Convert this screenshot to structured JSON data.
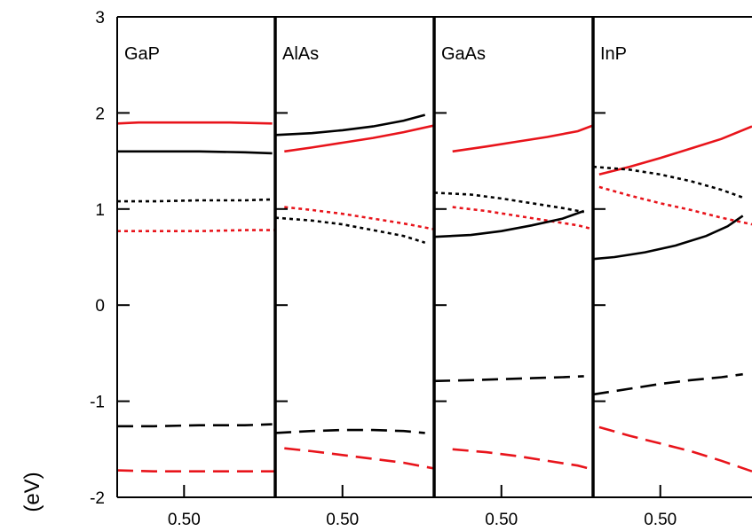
{
  "chart_data": {
    "type": "line",
    "ylabel": "(eV)",
    "ylim": [
      -2,
      3
    ],
    "yticks": [
      3,
      2,
      1,
      0,
      -1,
      -2
    ],
    "xtick_label": "0.50",
    "colors": {
      "black": "#000000",
      "red": "#e8141b"
    },
    "panels": [
      {
        "label": "GaP",
        "xlim": [
          0.28,
          0.8
        ],
        "series": [
          {
            "color": "red",
            "style": "solid",
            "x": [
              0.28,
              0.35,
              0.45,
              0.55,
              0.65,
              0.79
            ],
            "y": [
              1.89,
              1.9,
              1.9,
              1.9,
              1.9,
              1.89
            ]
          },
          {
            "color": "black",
            "style": "solid",
            "x": [
              0.28,
              0.4,
              0.55,
              0.7,
              0.79
            ],
            "y": [
              1.6,
              1.6,
              1.6,
              1.59,
              1.58
            ]
          },
          {
            "color": "black",
            "style": "dotted",
            "x": [
              0.28,
              0.4,
              0.55,
              0.7,
              0.79
            ],
            "y": [
              1.08,
              1.08,
              1.09,
              1.09,
              1.1
            ]
          },
          {
            "color": "red",
            "style": "dotted",
            "x": [
              0.28,
              0.4,
              0.55,
              0.7,
              0.8
            ],
            "y": [
              0.77,
              0.77,
              0.77,
              0.78,
              0.78
            ]
          },
          {
            "color": "black",
            "style": "dashed",
            "x": [
              0.28,
              0.4,
              0.55,
              0.7,
              0.79
            ],
            "y": [
              -1.26,
              -1.26,
              -1.25,
              -1.25,
              -1.24
            ]
          },
          {
            "color": "red",
            "style": "dashed",
            "x": [
              0.28,
              0.4,
              0.55,
              0.7,
              0.8
            ],
            "y": [
              -1.72,
              -1.73,
              -1.73,
              -1.73,
              -1.73
            ]
          }
        ]
      },
      {
        "label": "AlAs",
        "xlim": [
          0.28,
          0.8
        ],
        "series": [
          {
            "color": "black",
            "style": "solid",
            "x": [
              0.28,
              0.4,
              0.5,
              0.6,
              0.7,
              0.77
            ],
            "y": [
              1.77,
              1.79,
              1.82,
              1.86,
              1.92,
              1.98
            ]
          },
          {
            "color": "red",
            "style": "solid",
            "x": [
              0.31,
              0.4,
              0.5,
              0.6,
              0.7,
              0.8
            ],
            "y": [
              1.6,
              1.64,
              1.69,
              1.74,
              1.8,
              1.87
            ]
          },
          {
            "color": "red",
            "style": "dotted",
            "x": [
              0.31,
              0.4,
              0.5,
              0.6,
              0.7,
              0.8
            ],
            "y": [
              1.02,
              0.99,
              0.95,
              0.9,
              0.85,
              0.79
            ]
          },
          {
            "color": "black",
            "style": "dotted",
            "x": [
              0.28,
              0.4,
              0.5,
              0.6,
              0.7,
              0.77
            ],
            "y": [
              0.91,
              0.88,
              0.84,
              0.78,
              0.72,
              0.65
            ]
          },
          {
            "color": "black",
            "style": "dashed",
            "x": [
              0.28,
              0.4,
              0.5,
              0.6,
              0.7,
              0.77
            ],
            "y": [
              -1.33,
              -1.31,
              -1.3,
              -1.3,
              -1.31,
              -1.33
            ]
          },
          {
            "color": "red",
            "style": "dashed",
            "x": [
              0.31,
              0.4,
              0.5,
              0.6,
              0.7,
              0.8
            ],
            "y": [
              -1.49,
              -1.52,
              -1.56,
              -1.6,
              -1.64,
              -1.7
            ]
          }
        ]
      },
      {
        "label": "GaAs",
        "xlim": [
          0.28,
          0.8
        ],
        "series": [
          {
            "color": "red",
            "style": "solid",
            "x": [
              0.34,
              0.45,
              0.55,
              0.65,
              0.75,
              0.8
            ],
            "y": [
              1.6,
              1.65,
              1.7,
              1.75,
              1.81,
              1.87
            ]
          },
          {
            "color": "black",
            "style": "dotted",
            "x": [
              0.28,
              0.4,
              0.5,
              0.6,
              0.7,
              0.77
            ],
            "y": [
              1.17,
              1.15,
              1.11,
              1.06,
              1.01,
              0.97
            ]
          },
          {
            "color": "red",
            "style": "dotted",
            "x": [
              0.34,
              0.45,
              0.55,
              0.65,
              0.75,
              0.8
            ],
            "y": [
              1.02,
              0.98,
              0.93,
              0.88,
              0.83,
              0.79
            ]
          },
          {
            "color": "black",
            "style": "solid",
            "x": [
              0.28,
              0.4,
              0.5,
              0.6,
              0.7,
              0.77
            ],
            "y": [
              0.71,
              0.73,
              0.77,
              0.83,
              0.9,
              0.98
            ]
          },
          {
            "color": "black",
            "style": "dashed",
            "x": [
              0.28,
              0.4,
              0.5,
              0.6,
              0.7,
              0.77
            ],
            "y": [
              -0.79,
              -0.78,
              -0.77,
              -0.76,
              -0.75,
              -0.74
            ]
          },
          {
            "color": "red",
            "style": "dashed",
            "x": [
              0.34,
              0.45,
              0.55,
              0.65,
              0.75,
              0.8
            ],
            "y": [
              -1.5,
              -1.53,
              -1.57,
              -1.62,
              -1.67,
              -1.71
            ]
          }
        ]
      },
      {
        "label": "InP",
        "xlim": [
          0.28,
          0.8
        ],
        "series": [
          {
            "color": "red",
            "style": "solid",
            "x": [
              0.3,
              0.4,
              0.5,
              0.6,
              0.7,
              0.8
            ],
            "y": [
              1.36,
              1.44,
              1.53,
              1.63,
              1.73,
              1.86
            ]
          },
          {
            "color": "black",
            "style": "dotted",
            "x": [
              0.28,
              0.4,
              0.5,
              0.6,
              0.7,
              0.77
            ],
            "y": [
              1.44,
              1.41,
              1.36,
              1.29,
              1.2,
              1.12
            ]
          },
          {
            "color": "red",
            "style": "dotted",
            "x": [
              0.3,
              0.4,
              0.5,
              0.6,
              0.7,
              0.8
            ],
            "y": [
              1.23,
              1.14,
              1.06,
              0.99,
              0.91,
              0.84
            ]
          },
          {
            "color": "black",
            "style": "solid",
            "x": [
              0.28,
              0.35,
              0.45,
              0.55,
              0.65,
              0.72,
              0.77
            ],
            "y": [
              0.48,
              0.5,
              0.55,
              0.62,
              0.72,
              0.82,
              0.93
            ]
          },
          {
            "color": "black",
            "style": "dashed",
            "x": [
              0.28,
              0.4,
              0.5,
              0.6,
              0.7,
              0.77
            ],
            "y": [
              -0.93,
              -0.87,
              -0.82,
              -0.78,
              -0.75,
              -0.72
            ]
          },
          {
            "color": "red",
            "style": "dashed",
            "x": [
              0.3,
              0.4,
              0.5,
              0.6,
              0.7,
              0.8
            ],
            "y": [
              -1.27,
              -1.36,
              -1.44,
              -1.52,
              -1.62,
              -1.73
            ]
          }
        ]
      }
    ]
  }
}
